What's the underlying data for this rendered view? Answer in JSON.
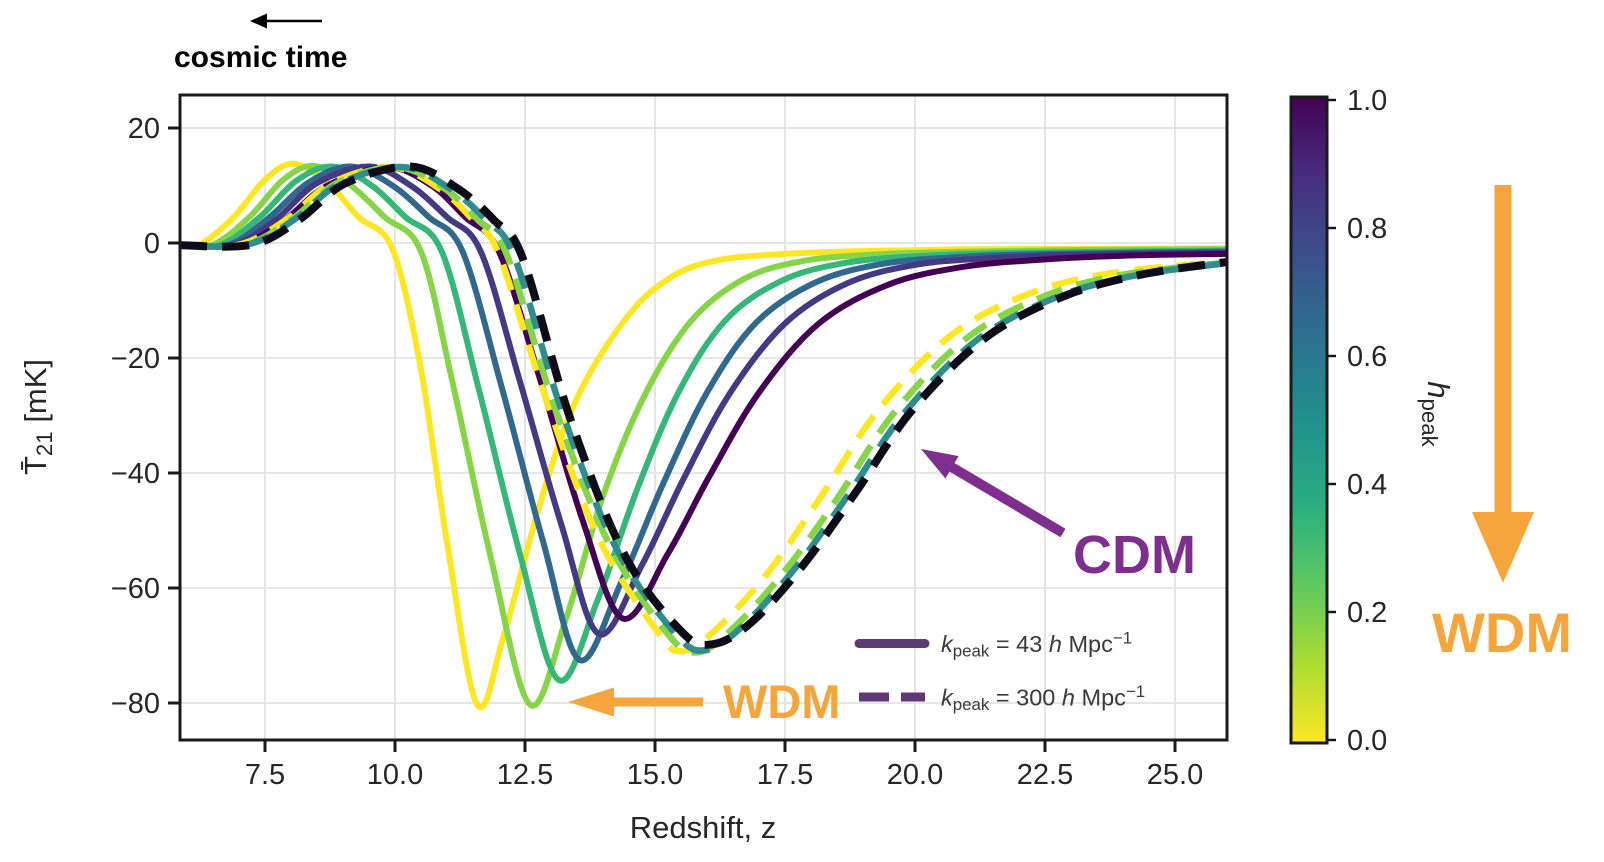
{
  "annotations": {
    "cosmic_time": {
      "text": "cosmic time",
      "color": "#000000"
    },
    "cdm": {
      "text": "CDM",
      "color": "#7e2f8e"
    },
    "wdm_inplot": {
      "text": "WDM",
      "color": "#f5a53c"
    },
    "wdm_side": {
      "text": "WDM",
      "color": "#f5a53c"
    }
  },
  "legend": {
    "text_color": "#3a3a3a",
    "line_color": "#5d3a76",
    "items": [
      {
        "style": "solid",
        "label_math": "*k*_{peak} = 43 *h* Mpc^{−1}"
      },
      {
        "style": "dashed",
        "label_math": "*k*_{peak} = 300 *h* Mpc^{−1}"
      }
    ]
  },
  "colors": {
    "grid": "#e2e2e2",
    "spine": "#1a1a1a",
    "tick_text": "#262626",
    "cdm_curve": "#0d0d1a"
  },
  "chart_data": {
    "type": "line",
    "title": "",
    "xlabel": "Redshift, z",
    "ylabel_math": "T̄_{21} [mK]",
    "xlim": [
      5.87,
      26.0
    ],
    "ylim": [
      -86.4,
      25.7
    ],
    "grid": true,
    "xticks": {
      "values": [
        7.5,
        10.0,
        12.5,
        15.0,
        17.5,
        20.0,
        22.5,
        25.0
      ],
      "labels": [
        "7.5",
        "10.0",
        "12.5",
        "15.0",
        "17.5",
        "20.0",
        "22.5",
        "25.0"
      ]
    },
    "yticks": {
      "values": [
        20,
        0,
        -20,
        -40,
        -60,
        -80
      ],
      "labels": [
        "20",
        "0",
        "−20",
        "−40",
        "−60",
        "−80"
      ]
    },
    "colorbar": {
      "label_math": "*h*_{peak}",
      "min": 0.0,
      "max": 1.0,
      "tick_values": [
        1.0,
        0.8,
        0.6,
        0.4,
        0.2,
        0.0
      ],
      "tick_labels": [
        "1.0",
        "0.8",
        "0.6",
        "0.4",
        "0.2",
        "0.0"
      ],
      "colormap": "viridis",
      "gradient_top_to_bottom": [
        "#440154",
        "#472f7d",
        "#3b518b",
        "#2c718e",
        "#21908d",
        "#27ad81",
        "#5cc863",
        "#aadc32",
        "#fde725"
      ]
    },
    "series": [
      {
        "name": "k_peak=43, h_peak=0.0",
        "group": "solid k43",
        "h_peak": 0.0,
        "color": "#fde725",
        "style": "solid",
        "width": 6,
        "points": [
          [
            5.87,
            -0.4
          ],
          [
            6.25,
            -0.3
          ],
          [
            6.9,
            4.5
          ],
          [
            7.5,
            11.0
          ],
          [
            8.05,
            13.8
          ],
          [
            8.7,
            10.5
          ],
          [
            9.3,
            4.5
          ],
          [
            9.95,
            -1.0
          ],
          [
            10.5,
            -22
          ],
          [
            11.0,
            -52
          ],
          [
            11.58,
            -80.3
          ],
          [
            12.1,
            -68
          ],
          [
            12.8,
            -45
          ],
          [
            13.5,
            -27
          ],
          [
            14.45,
            -13
          ],
          [
            15.3,
            -6
          ],
          [
            16.2,
            -3
          ],
          [
            17.5,
            -1.9
          ],
          [
            19.0,
            -1.4
          ],
          [
            21.0,
            -1.1
          ],
          [
            23.5,
            -1.0
          ],
          [
            26.0,
            -0.9
          ]
        ]
      },
      {
        "name": "k_peak=43, h_peak=0.2",
        "group": "solid k43",
        "h_peak": 0.2,
        "color": "#86d549",
        "style": "solid",
        "width": 6,
        "points": [
          [
            5.87,
            -0.4
          ],
          [
            6.5,
            -0.3
          ],
          [
            7.2,
            4.5
          ],
          [
            7.85,
            11.0
          ],
          [
            8.45,
            13.4
          ],
          [
            9.15,
            10.0
          ],
          [
            9.8,
            4.5
          ],
          [
            10.5,
            -1.5
          ],
          [
            11.1,
            -24
          ],
          [
            11.85,
            -55
          ],
          [
            12.6,
            -80.3
          ],
          [
            13.3,
            -65
          ],
          [
            14.0,
            -44
          ],
          [
            14.8,
            -26.5
          ],
          [
            15.7,
            -13.5
          ],
          [
            16.7,
            -6.3
          ],
          [
            17.8,
            -3.2
          ],
          [
            19.2,
            -2.0
          ],
          [
            21.0,
            -1.5
          ],
          [
            23.5,
            -1.2
          ],
          [
            26.0,
            -1.1
          ]
        ]
      },
      {
        "name": "k_peak=43, h_peak=0.4",
        "group": "solid k43",
        "h_peak": 0.4,
        "color": "#36b778",
        "style": "solid",
        "width": 6,
        "points": [
          [
            5.87,
            -0.4
          ],
          [
            6.65,
            -0.3
          ],
          [
            7.4,
            4.5
          ],
          [
            8.1,
            10.8
          ],
          [
            8.8,
            13.3
          ],
          [
            9.55,
            10.0
          ],
          [
            10.2,
            4.5
          ],
          [
            10.9,
            -1.5
          ],
          [
            11.6,
            -25
          ],
          [
            12.4,
            -54
          ],
          [
            13.15,
            -76
          ],
          [
            13.9,
            -62
          ],
          [
            14.65,
            -43
          ],
          [
            15.45,
            -26
          ],
          [
            16.35,
            -13.5
          ],
          [
            17.45,
            -6.5
          ],
          [
            18.7,
            -3.4
          ],
          [
            20.2,
            -2.2
          ],
          [
            22.0,
            -1.7
          ],
          [
            26.0,
            -1.3
          ]
        ]
      },
      {
        "name": "k_peak=43, h_peak=0.6",
        "group": "solid k43",
        "h_peak": 0.6,
        "color": "#31688e",
        "style": "solid",
        "width": 6,
        "points": [
          [
            5.87,
            -0.4
          ],
          [
            6.8,
            -0.3
          ],
          [
            7.55,
            4.2
          ],
          [
            8.35,
            10.6
          ],
          [
            9.15,
            13.3
          ],
          [
            9.95,
            10.0
          ],
          [
            10.65,
            4.5
          ],
          [
            11.3,
            -1.5
          ],
          [
            12.05,
            -25
          ],
          [
            12.85,
            -52
          ],
          [
            13.55,
            -72.5
          ],
          [
            14.35,
            -59
          ],
          [
            15.15,
            -42
          ],
          [
            16.0,
            -26
          ],
          [
            16.95,
            -13.8
          ],
          [
            18.1,
            -6.8
          ],
          [
            19.4,
            -3.6
          ],
          [
            20.9,
            -2.4
          ],
          [
            22.6,
            -1.9
          ],
          [
            26.0,
            -1.5
          ]
        ]
      },
      {
        "name": "k_peak=43, h_peak=0.8",
        "group": "solid k43",
        "h_peak": 0.8,
        "color": "#443983",
        "style": "solid",
        "width": 6,
        "points": [
          [
            5.87,
            -0.4
          ],
          [
            6.9,
            -0.3
          ],
          [
            7.7,
            4.0
          ],
          [
            8.5,
            10.4
          ],
          [
            9.5,
            13.3
          ],
          [
            10.3,
            10.0
          ],
          [
            11.0,
            4.5
          ],
          [
            11.65,
            -1.5
          ],
          [
            12.4,
            -24
          ],
          [
            13.2,
            -49
          ],
          [
            13.92,
            -68
          ],
          [
            14.75,
            -56
          ],
          [
            15.55,
            -41
          ],
          [
            16.45,
            -26
          ],
          [
            17.5,
            -14
          ],
          [
            18.7,
            -7
          ],
          [
            20.0,
            -3.8
          ],
          [
            21.5,
            -2.6
          ],
          [
            23.2,
            -2.0
          ],
          [
            26.0,
            -1.7
          ]
        ]
      },
      {
        "name": "k_peak=43, h_peak=1.0",
        "group": "solid k43",
        "h_peak": 1.0,
        "color": "#440154",
        "style": "solid",
        "width": 6,
        "points": [
          [
            5.87,
            -0.4
          ],
          [
            7.0,
            -0.3
          ],
          [
            7.85,
            3.8
          ],
          [
            8.7,
            10.0
          ],
          [
            9.85,
            13.2
          ],
          [
            10.7,
            10.0
          ],
          [
            11.35,
            4.5
          ],
          [
            12.0,
            -1.5
          ],
          [
            12.8,
            -24
          ],
          [
            13.6,
            -48
          ],
          [
            14.38,
            -65.3
          ],
          [
            15.25,
            -54
          ],
          [
            16.05,
            -40.5
          ],
          [
            17.0,
            -26
          ],
          [
            18.15,
            -14
          ],
          [
            19.5,
            -7.2
          ],
          [
            20.9,
            -4.2
          ],
          [
            22.4,
            -2.9
          ],
          [
            24.0,
            -2.2
          ],
          [
            26.0,
            -1.9
          ]
        ]
      },
      {
        "name": "k_peak=300, h_peak=0.0",
        "group": "dashed k300",
        "h_peak": 0.0,
        "color": "#fde725",
        "style": "dashed",
        "width": 6.5,
        "dash_offset": 32,
        "points": [
          [
            5.87,
            -0.4
          ],
          [
            7.0,
            -0.3
          ],
          [
            7.9,
            4.0
          ],
          [
            8.8,
            10.5
          ],
          [
            9.95,
            13.2
          ],
          [
            10.85,
            9.5
          ],
          [
            11.5,
            4.0
          ],
          [
            12.0,
            -2.0
          ],
          [
            12.9,
            -27
          ],
          [
            13.9,
            -51
          ],
          [
            15.0,
            -67
          ],
          [
            15.5,
            -71
          ],
          [
            16.2,
            -67
          ],
          [
            17.2,
            -57
          ],
          [
            18.2,
            -44
          ],
          [
            19.3,
            -29
          ],
          [
            20.7,
            -16
          ],
          [
            22.2,
            -8.8
          ],
          [
            23.8,
            -5.2
          ],
          [
            26.0,
            -3.2
          ]
        ]
      },
      {
        "name": "k_peak=300, h_peak=0.4",
        "group": "dashed k300",
        "h_peak": 0.4,
        "color": "#86d549",
        "style": "dashed",
        "width": 6.5,
        "dash_offset": 10,
        "points": [
          [
            5.87,
            -0.4
          ],
          [
            7.1,
            -0.3
          ],
          [
            8.0,
            4.0
          ],
          [
            8.9,
            10.5
          ],
          [
            10.05,
            13.2
          ],
          [
            10.95,
            9.5
          ],
          [
            11.6,
            4.0
          ],
          [
            12.15,
            -2.0
          ],
          [
            13.05,
            -28
          ],
          [
            14.1,
            -52
          ],
          [
            15.2,
            -67.5
          ],
          [
            15.8,
            -71.2
          ],
          [
            16.5,
            -67
          ],
          [
            17.5,
            -57
          ],
          [
            18.5,
            -44.5
          ],
          [
            19.6,
            -29.5
          ],
          [
            21.0,
            -16.5
          ],
          [
            22.5,
            -9.2
          ],
          [
            24.0,
            -5.5
          ],
          [
            26.0,
            -3.4
          ]
        ]
      },
      {
        "name": "k_peak=300, h_peak=0.6",
        "group": "dashed k300",
        "h_peak": 0.6,
        "color": "#2f8e8c",
        "style": "dashed",
        "width": 6.5,
        "dash_offset": 21,
        "points": [
          [
            5.87,
            -0.4
          ],
          [
            7.15,
            -0.3
          ],
          [
            8.05,
            4.0
          ],
          [
            8.95,
            10.4
          ],
          [
            10.15,
            13.2
          ],
          [
            11.05,
            9.5
          ],
          [
            11.75,
            4.0
          ],
          [
            12.3,
            -2.5
          ],
          [
            13.2,
            -29
          ],
          [
            14.25,
            -53
          ],
          [
            15.4,
            -68
          ],
          [
            15.98,
            -70.8
          ],
          [
            16.7,
            -66.5
          ],
          [
            17.7,
            -56.5
          ],
          [
            18.7,
            -44
          ],
          [
            19.8,
            -29.5
          ],
          [
            21.2,
            -16.8
          ],
          [
            22.7,
            -9.5
          ],
          [
            24.2,
            -5.7
          ],
          [
            26.0,
            -3.5
          ]
        ]
      },
      {
        "name": "CDM",
        "group": "CDM",
        "color": "#0d0d1a",
        "style": "dashed",
        "width": 8,
        "dash_offset": 0,
        "points": [
          [
            5.87,
            -0.4
          ],
          [
            7.25,
            -0.3
          ],
          [
            8.15,
            4.0
          ],
          [
            9.05,
            10.4
          ],
          [
            10.3,
            13.3
          ],
          [
            11.2,
            9.5
          ],
          [
            11.9,
            4.0
          ],
          [
            12.45,
            -2.5
          ],
          [
            13.35,
            -30
          ],
          [
            14.4,
            -54
          ],
          [
            15.5,
            -67.5
          ],
          [
            16.1,
            -69.8
          ],
          [
            16.85,
            -66
          ],
          [
            17.85,
            -56
          ],
          [
            18.85,
            -43.5
          ],
          [
            19.95,
            -29
          ],
          [
            21.35,
            -16.5
          ],
          [
            22.85,
            -9.3
          ],
          [
            24.35,
            -5.5
          ],
          [
            26.0,
            -3.3
          ]
        ]
      }
    ]
  }
}
